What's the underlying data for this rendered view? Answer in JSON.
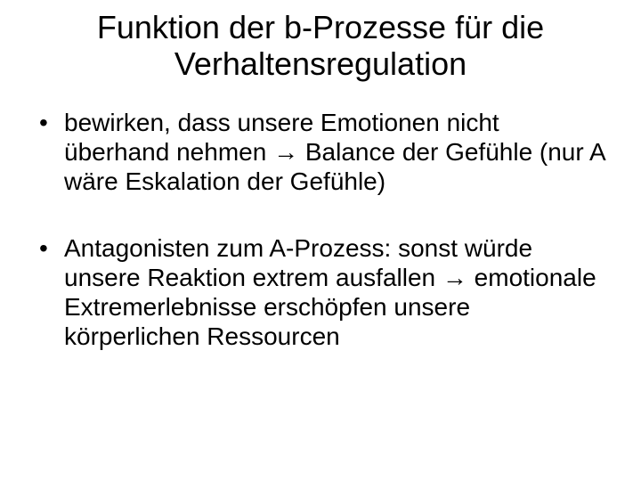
{
  "slide": {
    "title": "Funktion der b-Prozesse für die Verhaltensregulation",
    "bullets": [
      "bewirken, dass unsere Emotionen nicht überhand nehmen → Balance der Gefühle (nur A wäre Eskalation der Gefühle)",
      "Antagonisten zum A-Prozess: sonst würde unsere Reaktion extrem ausfallen → emotionale Extremerlebnisse erschöpfen unsere körperlichen Ressourcen"
    ]
  },
  "style": {
    "background_color": "#ffffff",
    "text_color": "#000000",
    "title_fontsize": 36,
    "title_fontweight": 400,
    "body_fontsize": 28,
    "body_fontweight": 400,
    "font_family": "Arial"
  }
}
